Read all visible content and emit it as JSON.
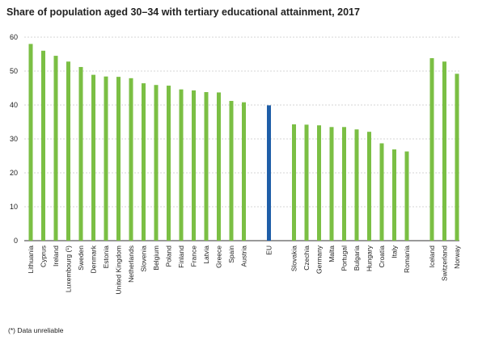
{
  "chart_data": {
    "type": "bar",
    "title": "Share of population aged 30–34 with tertiary educational attainment, 2017",
    "footnote": "(*) Data unreliable",
    "xlabel": "",
    "ylabel": "",
    "ylim": [
      0,
      60
    ],
    "yticks": [
      0,
      10,
      20,
      30,
      40,
      50,
      60
    ],
    "grid": true,
    "legend": "none",
    "colors": {
      "default": "#7bbf44",
      "highlight": "#1f5ea8",
      "grid": "#c8c8c8"
    },
    "categories": [
      "Lithuania",
      "Cyprus",
      "Ireland",
      "Luxembourg (¹)",
      "Sweden",
      "Denmark",
      "Estonia",
      "United Kingdom",
      "Netherlands",
      "Slovenia",
      "Belgium",
      "Poland",
      "Finland",
      "France",
      "Latvia",
      "Greece",
      "Spain",
      "Austria",
      "",
      "EU",
      "",
      "Slovakia",
      "Czechia",
      "Germany",
      "Malta",
      "Portugal",
      "Bulgaria",
      "Hungary",
      "Croatia",
      "Italy",
      "Romania",
      "",
      "Iceland",
      "Switzerland",
      "Norway"
    ],
    "values": [
      58.0,
      56.0,
      54.5,
      52.8,
      51.2,
      48.9,
      48.4,
      48.3,
      47.9,
      46.4,
      45.9,
      45.7,
      44.6,
      44.3,
      43.8,
      43.7,
      41.2,
      40.8,
      null,
      39.9,
      null,
      34.3,
      34.2,
      34.0,
      33.5,
      33.5,
      32.8,
      32.1,
      28.7,
      26.9,
      26.3,
      null,
      53.8,
      52.8,
      49.2
    ],
    "highlight": [
      "EU"
    ]
  }
}
